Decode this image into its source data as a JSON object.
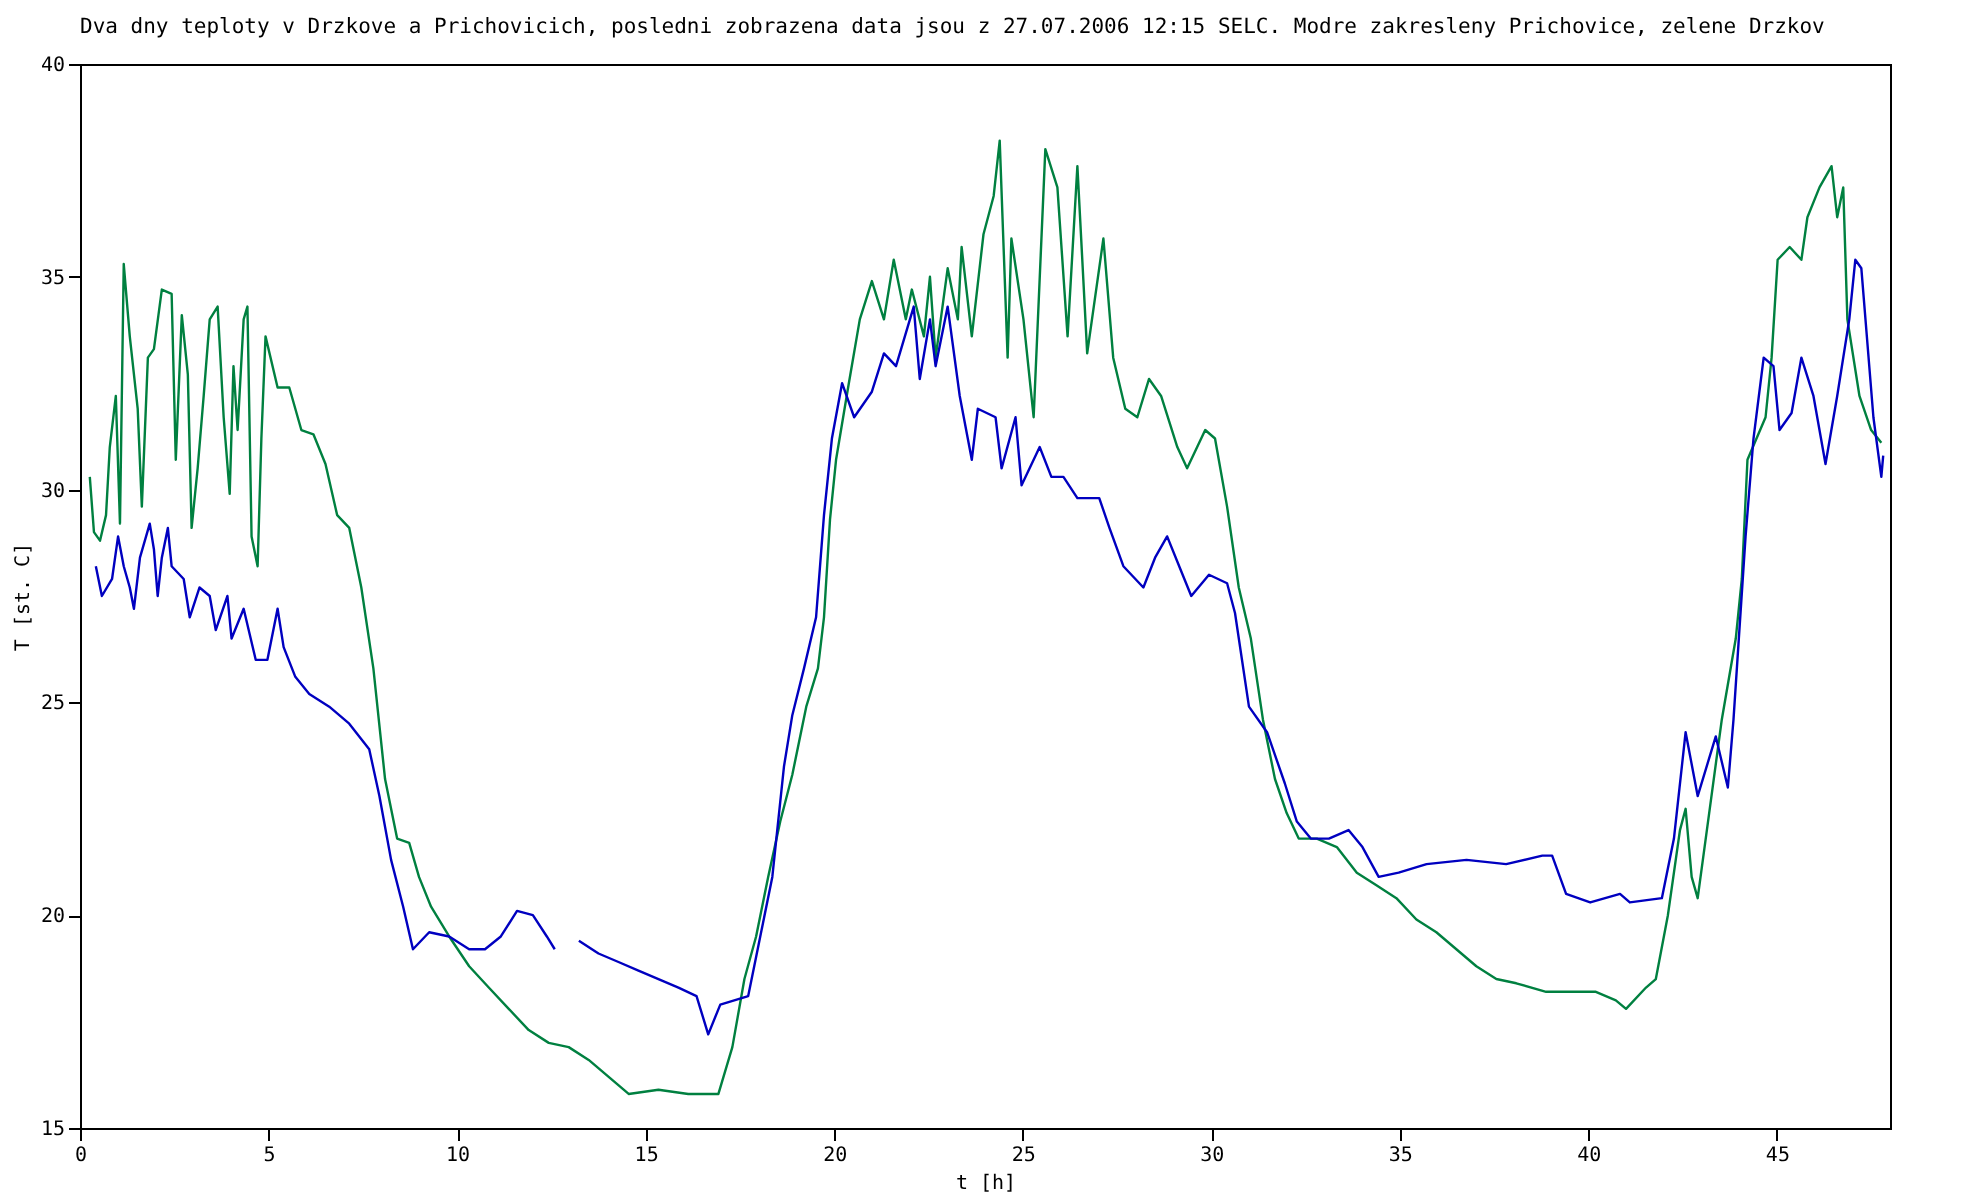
{
  "chart_data": {
    "type": "line",
    "title": "Dva dny teploty v Drzkove a Prichovicich, posledni zobrazena data jsou z 27.07.2006 12:15 SELC. Modre zakresleny Prichovice, zelene Drzkov",
    "xlabel": "t [h]",
    "ylabel": "T [st. C]",
    "xlim": [
      0,
      48
    ],
    "xticks": [
      0,
      5,
      10,
      15,
      20,
      25,
      30,
      35,
      40,
      45
    ],
    "ylim": [
      15,
      40
    ],
    "yticks": [
      15,
      20,
      25,
      30,
      35,
      40
    ],
    "grid": false,
    "legend": false,
    "marker": "none",
    "line_style": "solid",
    "series": [
      {
        "color": "#008040",
        "x": [
          0.26,
          0.37,
          0.53,
          0.69,
          0.79,
          0.95,
          1.06,
          1.16,
          1.32,
          1.53,
          1.64,
          1.8,
          1.96,
          2.17,
          2.43,
          2.54,
          2.7,
          2.86,
          2.96,
          3.12,
          3.28,
          3.44,
          3.65,
          3.81,
          3.97,
          4.07,
          4.18,
          4.34,
          4.44,
          4.55,
          4.71,
          4.81,
          4.92,
          5.24,
          5.55,
          5.87,
          6.19,
          6.51,
          6.82,
          7.14,
          7.46,
          7.78,
          8.09,
          8.41,
          8.73,
          8.99,
          9.31,
          9.79,
          10.32,
          10.84,
          11.37,
          11.9,
          12.43,
          12.96,
          13.49,
          14.02,
          14.55,
          15.34,
          16.13,
          16.93,
          17.3,
          17.62,
          17.93,
          18.25,
          18.57,
          18.89,
          19.26,
          19.57,
          19.73,
          19.89,
          20.05,
          20.37,
          20.68,
          21.0,
          21.32,
          21.58,
          21.9,
          22.06,
          22.38,
          22.54,
          22.69,
          23.01,
          23.28,
          23.38,
          23.65,
          23.96,
          24.23,
          24.39,
          24.6,
          24.7,
          25.02,
          25.29,
          25.6,
          25.92,
          26.19,
          26.45,
          26.71,
          27.14,
          27.4,
          27.72,
          28.04,
          28.35,
          28.67,
          29.1,
          29.36,
          29.84,
          30.1,
          30.42,
          30.73,
          31.05,
          31.37,
          31.69,
          32.0,
          32.32,
          32.8,
          33.33,
          33.86,
          34.39,
          34.91,
          35.44,
          35.97,
          36.5,
          37.03,
          37.56,
          38.09,
          38.88,
          39.68,
          40.2,
          40.73,
          41.0,
          41.53,
          41.79,
          42.11,
          42.43,
          42.58,
          42.74,
          42.9,
          43.22,
          43.54,
          43.91,
          44.07,
          44.22,
          44.7,
          44.86,
          45.02,
          45.34,
          45.65,
          45.81,
          46.13,
          46.45,
          46.6,
          46.76,
          46.87,
          47.19,
          47.5,
          47.77
        ],
        "values": [
          30.3,
          29.0,
          28.8,
          29.4,
          31.0,
          32.2,
          29.2,
          35.3,
          33.6,
          31.9,
          29.6,
          33.1,
          33.3,
          34.7,
          34.6,
          30.7,
          34.1,
          32.7,
          29.1,
          30.5,
          32.2,
          34.0,
          34.3,
          31.7,
          29.9,
          32.9,
          31.4,
          34.0,
          34.3,
          28.9,
          28.2,
          31.2,
          33.6,
          32.4,
          32.4,
          31.4,
          31.3,
          30.6,
          29.4,
          29.1,
          27.7,
          25.8,
          23.2,
          21.8,
          21.7,
          20.9,
          20.2,
          19.5,
          18.8,
          18.3,
          17.8,
          17.3,
          17.0,
          16.9,
          16.6,
          16.2,
          15.8,
          15.9,
          15.8,
          15.8,
          16.9,
          18.5,
          19.5,
          20.9,
          22.2,
          23.3,
          24.9,
          25.8,
          27.0,
          29.3,
          30.7,
          32.4,
          34.0,
          34.9,
          34.0,
          35.4,
          34.0,
          34.7,
          33.6,
          35.0,
          33.1,
          35.2,
          34.0,
          35.7,
          33.6,
          36.0,
          36.9,
          38.2,
          33.1,
          35.9,
          34.0,
          31.7,
          38.0,
          37.1,
          33.6,
          37.6,
          33.2,
          35.9,
          33.1,
          31.9,
          31.7,
          32.6,
          32.2,
          31.0,
          30.5,
          31.4,
          31.2,
          29.6,
          27.7,
          26.5,
          24.6,
          23.2,
          22.4,
          21.8,
          21.8,
          21.6,
          21.0,
          20.7,
          20.4,
          19.9,
          19.6,
          19.2,
          18.8,
          18.5,
          18.4,
          18.2,
          18.2,
          18.2,
          18.0,
          17.8,
          18.3,
          18.5,
          20.0,
          22.0,
          22.5,
          20.9,
          20.4,
          22.5,
          24.6,
          26.5,
          27.9,
          30.7,
          31.7,
          33.1,
          35.4,
          35.7,
          35.4,
          36.4,
          37.1,
          37.6,
          36.4,
          37.1,
          34.0,
          32.2,
          31.4,
          31.1
        ]
      },
      {
        "color": "#0000c0",
        "x": [
          0.42,
          0.58,
          0.85,
          1.01,
          1.16,
          1.32,
          1.43,
          1.59,
          1.85,
          1.96,
          2.06,
          2.17,
          2.33,
          2.43,
          2.75,
          2.91,
          3.17,
          3.44,
          3.6,
          3.91,
          4.02,
          4.34,
          4.66,
          4.97,
          5.24,
          5.4,
          5.71,
          6.08,
          6.61,
          7.14,
          7.67,
          7.94,
          8.25,
          8.57,
          8.83,
          9.26,
          9.79,
          10.32,
          10.74,
          11.16,
          11.59,
          12.01,
          12.38,
          12.59,
          12.9,
          13.23,
          13.75,
          14.28,
          14.81,
          15.34,
          15.87,
          16.35,
          16.66,
          16.98,
          17.72,
          18.04,
          18.36,
          18.67,
          18.89,
          19.2,
          19.52,
          19.73,
          19.94,
          20.21,
          20.53,
          21.0,
          21.32,
          21.64,
          22.11,
          22.27,
          22.54,
          22.69,
          23.01,
          23.33,
          23.65,
          23.81,
          24.28,
          24.44,
          24.81,
          24.97,
          25.45,
          25.76,
          26.08,
          26.45,
          27.03,
          27.3,
          27.67,
          28.2,
          28.51,
          28.83,
          29.15,
          29.47,
          29.94,
          30.42,
          30.63,
          31.0,
          31.48,
          31.95,
          32.27,
          32.64,
          33.12,
          33.64,
          34.01,
          34.44,
          34.97,
          35.71,
          36.77,
          37.82,
          38.78,
          39.04,
          39.41,
          40.05,
          40.84,
          41.1,
          41.95,
          42.27,
          42.58,
          42.9,
          43.38,
          43.7,
          43.85,
          44.17,
          44.38,
          44.65,
          44.91,
          45.07,
          45.39,
          45.65,
          45.97,
          46.29,
          46.6,
          46.92,
          47.08,
          47.24,
          47.56,
          47.77,
          47.82
        ],
        "values": [
          28.2,
          27.5,
          27.9,
          28.9,
          28.2,
          27.7,
          27.2,
          28.4,
          29.2,
          28.6,
          27.5,
          28.4,
          29.1,
          28.2,
          27.9,
          27.0,
          27.7,
          27.5,
          26.7,
          27.5,
          26.5,
          27.2,
          26.0,
          26.0,
          27.2,
          26.3,
          25.6,
          25.2,
          24.9,
          24.5,
          23.9,
          22.8,
          21.3,
          20.2,
          19.2,
          19.6,
          19.5,
          19.2,
          19.2,
          19.5,
          20.1,
          20.0,
          19.5,
          19.2,
          null,
          19.4,
          19.1,
          18.9,
          18.7,
          18.5,
          18.3,
          18.1,
          17.2,
          17.9,
          18.1,
          19.5,
          20.9,
          23.5,
          24.7,
          25.8,
          27.0,
          29.4,
          31.2,
          32.5,
          31.7,
          32.3,
          33.2,
          32.9,
          34.3,
          32.6,
          34.0,
          32.9,
          34.3,
          32.2,
          30.7,
          31.9,
          31.7,
          30.5,
          31.7,
          30.1,
          31.0,
          30.3,
          30.3,
          29.8,
          29.8,
          29.1,
          28.2,
          27.7,
          28.4,
          28.9,
          28.2,
          27.5,
          28.0,
          27.8,
          27.1,
          24.9,
          24.3,
          23.1,
          22.2,
          21.8,
          21.8,
          22.0,
          21.6,
          20.9,
          21.0,
          21.2,
          21.3,
          21.2,
          21.4,
          21.4,
          20.5,
          20.3,
          20.5,
          20.3,
          20.4,
          21.8,
          24.3,
          22.8,
          24.2,
          23.0,
          24.6,
          28.9,
          31.2,
          33.1,
          32.9,
          31.4,
          31.8,
          33.1,
          32.2,
          30.6,
          32.2,
          34.0,
          35.4,
          35.2,
          31.7,
          30.3,
          30.8
        ]
      }
    ]
  }
}
